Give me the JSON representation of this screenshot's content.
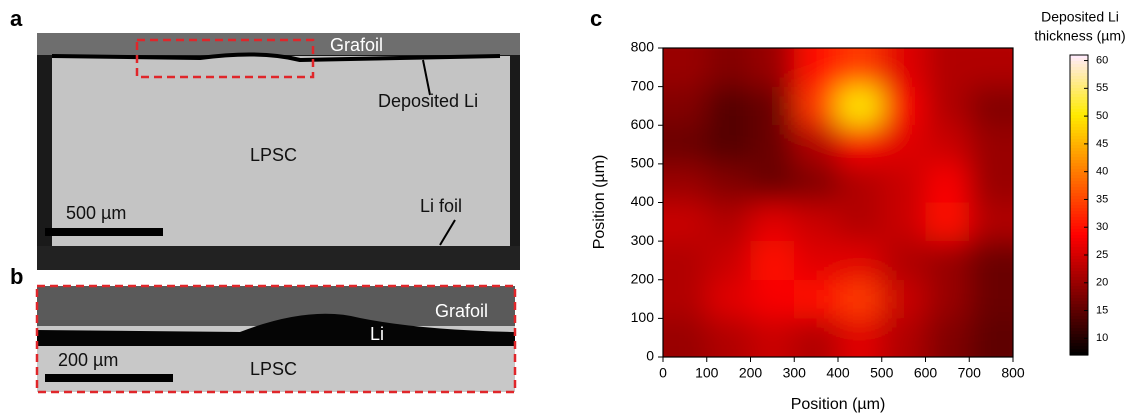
{
  "panels": {
    "a": {
      "label": "a",
      "grafoil": "Grafoil",
      "deposited_li": "Deposited Li",
      "lpsc": "LPSC",
      "scale_bar": "500 µm",
      "li_foil": "Li foil"
    },
    "b": {
      "label": "b",
      "grafoil": "Grafoil",
      "li": "Li",
      "scale_bar": "200 µm",
      "lpsc": "LPSC"
    }
  },
  "chart_data": {
    "type": "heatmap",
    "panel_label": "c",
    "xlabel": "Position (µm)",
    "ylabel": "Position (µm)",
    "xlim": [
      0,
      800
    ],
    "ylim": [
      0,
      800
    ],
    "xticks": [
      0,
      100,
      200,
      300,
      400,
      500,
      600,
      700,
      800
    ],
    "yticks": [
      0,
      100,
      200,
      300,
      400,
      500,
      600,
      700,
      800
    ],
    "colormap": "hot",
    "z": [
      [
        20,
        22,
        24,
        22,
        26,
        22,
        18,
        15
      ],
      [
        22,
        26,
        28,
        30,
        34,
        24,
        20,
        16
      ],
      [
        22,
        24,
        30,
        26,
        26,
        22,
        20,
        16
      ],
      [
        24,
        22,
        26,
        24,
        22,
        24,
        30,
        22
      ],
      [
        20,
        18,
        16,
        18,
        22,
        24,
        28,
        20
      ],
      [
        16,
        14,
        16,
        22,
        28,
        26,
        24,
        20
      ],
      [
        18,
        14,
        16,
        34,
        50,
        28,
        22,
        18
      ],
      [
        20,
        18,
        20,
        30,
        34,
        26,
        22,
        22
      ]
    ],
    "colorbar_title": [
      "Deposited Li",
      "thickness (µm)"
    ],
    "clim": [
      7,
      61
    ],
    "cticks": [
      10,
      15,
      20,
      25,
      30,
      35,
      40,
      45,
      50,
      55,
      60
    ]
  }
}
